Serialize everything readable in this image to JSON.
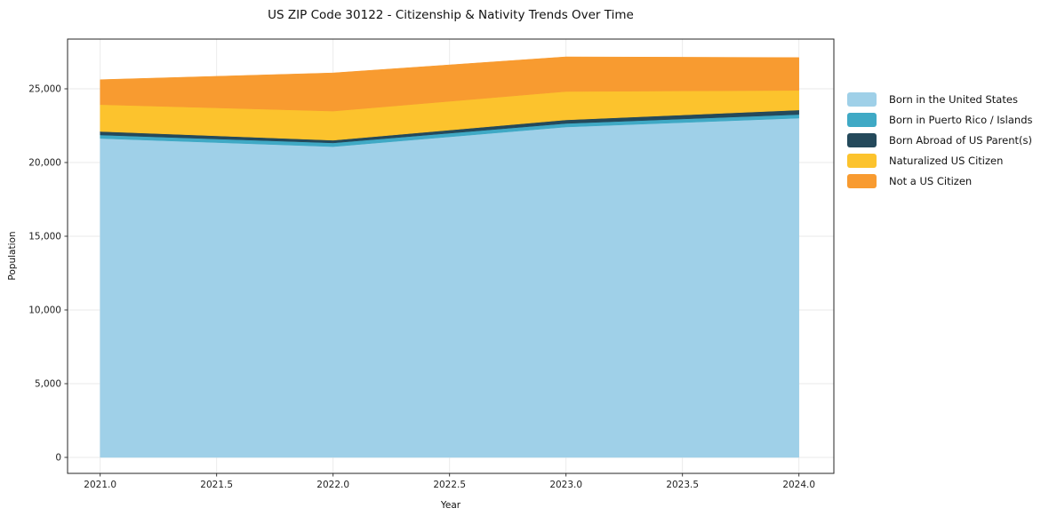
{
  "figure": {
    "background": "#ffffff",
    "grid_color": "#e9e9e9",
    "spine_color": "#262626"
  },
  "chart_data": {
    "type": "area",
    "stacked": true,
    "title": "US ZIP Code 30122 - Citizenship & Nativity Trends Over Time",
    "xlabel": "Year",
    "ylabel": "Population",
    "x": [
      2021,
      2022,
      2023,
      2024
    ],
    "series": [
      {
        "name": "Born in the United States",
        "slug": "born-in-us",
        "color": "#9fd0e8",
        "values": [
          21630,
          21080,
          22410,
          23010
        ]
      },
      {
        "name": "Born in Puerto Rico / Islands",
        "slug": "born-pr-islands",
        "color": "#3fa9c5",
        "values": [
          240,
          250,
          240,
          250
        ]
      },
      {
        "name": "Born Abroad of US Parent(s)",
        "slug": "born-abroad",
        "color": "#24495b",
        "values": [
          240,
          180,
          240,
          300
        ]
      },
      {
        "name": "Naturalized US Citizen",
        "slug": "naturalized",
        "color": "#fcc32d",
        "values": [
          1820,
          1980,
          1930,
          1330
        ]
      },
      {
        "name": "Not a US Citizen",
        "slug": "not-citizen",
        "color": "#f89b30",
        "values": [
          1690,
          2590,
          2350,
          2230
        ]
      }
    ],
    "xlim": [
      2020.86,
      2024.15
    ],
    "ylim": [
      -1084,
      28373
    ],
    "x_ticks": [
      2021.0,
      2021.5,
      2022.0,
      2022.5,
      2023.0,
      2023.5,
      2024.0
    ],
    "x_tick_labels": [
      "2021.0",
      "2021.5",
      "2022.0",
      "2022.5",
      "2023.0",
      "2023.5",
      "2024.0"
    ],
    "y_ticks": [
      0,
      5000,
      10000,
      15000,
      20000,
      25000
    ],
    "y_tick_labels": [
      "0",
      "5,000",
      "10,000",
      "15,000",
      "20,000",
      "25,000"
    ],
    "grid": true,
    "legend_position": "right-outside"
  }
}
